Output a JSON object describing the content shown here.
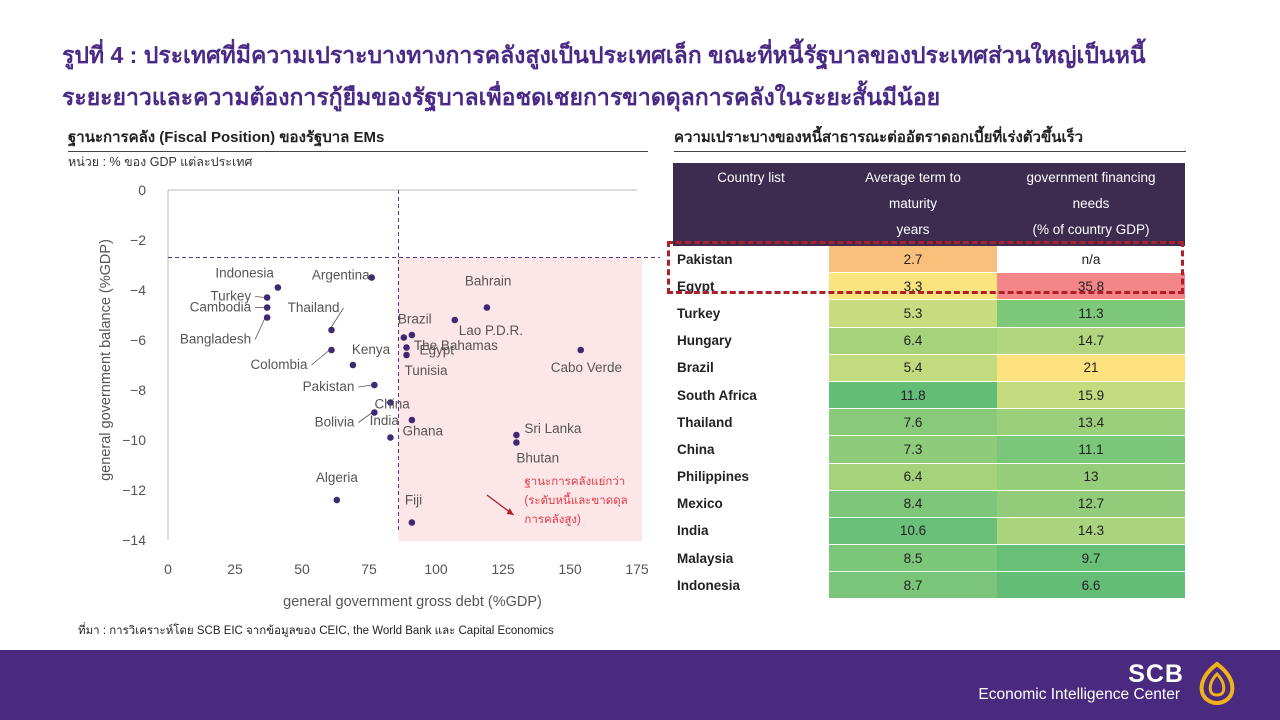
{
  "title": {
    "line1": "รูปที่ 4 : ประเทศที่มีความเปราะบางทางการคลังสูงเป็นประเทศเล็ก ขณะที่หนี้รัฐบาลของประเทศส่วนใหญ่เป็นหนี้",
    "line2": "ระยะยาวและความต้องการกู้ยืมของรัฐบาลเพื่อชดเชยการขาดดุลการคลังในระยะสั้นมีน้อย"
  },
  "left_panel": {
    "heading": "ฐานะการคลัง (Fiscal Position) ของรัฐบาล EMs",
    "unit": "หน่วย : % ของ GDP แต่ละประเทศ"
  },
  "source": "ที่มา : การวิเคราะห์โดย SCB EIC จากข้อมูลของ CEIC, the World Bank และ Capital Economics",
  "right_panel": {
    "heading": "ความเปราะบางของหนี้สาธารณะต่ออัตราดอกเบี้ยที่เร่งตัวขึ้นเร็ว",
    "columns": [
      [
        "Country list"
      ],
      [
        "Average term to",
        "maturity",
        "years"
      ],
      [
        "government financing",
        "needs",
        "(% of country GDP)"
      ]
    ],
    "rows": [
      {
        "country": "Pakistan",
        "term": "2.7",
        "needs": "n/a",
        "term_color": "#f8c07a",
        "needs_color": "#ffffff"
      },
      {
        "country": "Egypt",
        "term": "3.3",
        "needs": "35.8",
        "term_color": "#f9e47e",
        "needs_color": "#f4868a"
      },
      {
        "country": "Turkey",
        "term": "5.3",
        "needs": "11.3",
        "term_color": "#c9dd80",
        "needs_color": "#7ec87a"
      },
      {
        "country": "Hungary",
        "term": "6.4",
        "needs": "14.7",
        "term_color": "#a6d27c",
        "needs_color": "#b2d67f"
      },
      {
        "country": "Brazil",
        "term": "5.4",
        "needs": "21",
        "term_color": "#c3db7f",
        "needs_color": "#fde17e"
      },
      {
        "country": "South Africa",
        "term": "11.8",
        "needs": "15.9",
        "term_color": "#64bd77",
        "needs_color": "#c4db7f"
      },
      {
        "country": "Thailand",
        "term": "7.6",
        "needs": "13.4",
        "term_color": "#89c97a",
        "needs_color": "#9ccf7c"
      },
      {
        "country": "China",
        "term": "7.3",
        "needs": "11.1",
        "term_color": "#8ecb7b",
        "needs_color": "#7bc779"
      },
      {
        "country": "Philippines",
        "term": "6.4",
        "needs": "13",
        "term_color": "#a6d27c",
        "needs_color": "#96cd7b"
      },
      {
        "country": "Mexico",
        "term": "8.4",
        "needs": "12.7",
        "term_color": "#7ec679",
        "needs_color": "#92cc7b"
      },
      {
        "country": "India",
        "term": "10.6",
        "needs": "14.3",
        "term_color": "#6ac078",
        "needs_color": "#aad47d"
      },
      {
        "country": "Malaysia",
        "term": "8.5",
        "needs": "9.7",
        "term_color": "#7cc679",
        "needs_color": "#68bf77"
      },
      {
        "country": "Indonesia",
        "term": "8.7",
        "needs": "6.6",
        "term_color": "#7ac579",
        "needs_color": "#63bd77"
      }
    ]
  },
  "chart_data": {
    "type": "scatter",
    "xlabel": "general government gross debt (%GDP)",
    "ylabel": "general government balance (%GDP)",
    "xlim": [
      0,
      175
    ],
    "ylim": [
      -14,
      0
    ],
    "xticks": [
      0,
      25,
      50,
      75,
      100,
      125,
      150,
      175
    ],
    "yticks": [
      0,
      -2,
      -4,
      -6,
      -8,
      -10,
      -12,
      -14
    ],
    "grid": false,
    "reference_lines": {
      "x": 86,
      "y": -2.7
    },
    "shaded_region": {
      "x_from": 86,
      "y_to": -2.7
    },
    "shaded_label": [
      "ฐานะการคลังแย่กว่า",
      "(ระดับหนี้และขาดดุล",
      "การคลังสูง)"
    ],
    "points": [
      {
        "label": "Indonesia",
        "x": 41,
        "y": -3.9
      },
      {
        "label": "Argentina",
        "x": 76,
        "y": -3.5
      },
      {
        "label": "Turkey",
        "x": 37,
        "y": -4.3
      },
      {
        "label": "Cambodia",
        "x": 37,
        "y": -4.7
      },
      {
        "label": "Bangladesh",
        "x": 37,
        "y": -5.1
      },
      {
        "label": "Thailand",
        "x": 61,
        "y": -5.6
      },
      {
        "label": "Colombia",
        "x": 61,
        "y": -6.4
      },
      {
        "label": "Kenya",
        "x": 69,
        "y": -7.0
      },
      {
        "label": "Pakistan",
        "x": 77,
        "y": -7.8
      },
      {
        "label": "China",
        "x": 83,
        "y": -8.5
      },
      {
        "label": "Bolivia",
        "x": 77,
        "y": -8.9
      },
      {
        "label": "India",
        "x": 91,
        "y": -9.2
      },
      {
        "label": "Ghana",
        "x": 83,
        "y": -9.9
      },
      {
        "label": "Brazil",
        "x": 88,
        "y": -5.9
      },
      {
        "label": "Bahrain",
        "x": 119,
        "y": -4.7
      },
      {
        "label": "Lao P.D.R.",
        "x": 107,
        "y": -5.2
      },
      {
        "label": "The Bahamas",
        "x": 91,
        "y": -5.8
      },
      {
        "label": "Egypt",
        "x": 89,
        "y": -6.3
      },
      {
        "label": "Tunisia",
        "x": 89,
        "y": -6.6
      },
      {
        "label": "Cabo Verde",
        "x": 154,
        "y": -6.4
      },
      {
        "label": "Sri Lanka",
        "x": 130,
        "y": -9.8
      },
      {
        "label": "Bhutan",
        "x": 130,
        "y": -10.1
      },
      {
        "label": "Algeria",
        "x": 63,
        "y": -12.4
      },
      {
        "label": "Fiji",
        "x": 91,
        "y": -13.3
      }
    ],
    "colors": {
      "point": "#3d2a70",
      "shade": "#fde6e8",
      "annotation": "#e23a44",
      "refline": "#4a3a8c"
    }
  },
  "branding": {
    "scb": "SCB",
    "eic": "Economic Intelligence Center"
  },
  "colors": {
    "title": "#4a2a86",
    "footer": "#4a2a7e",
    "table_header": "#3d2b50",
    "highlight": "#b0202a"
  }
}
